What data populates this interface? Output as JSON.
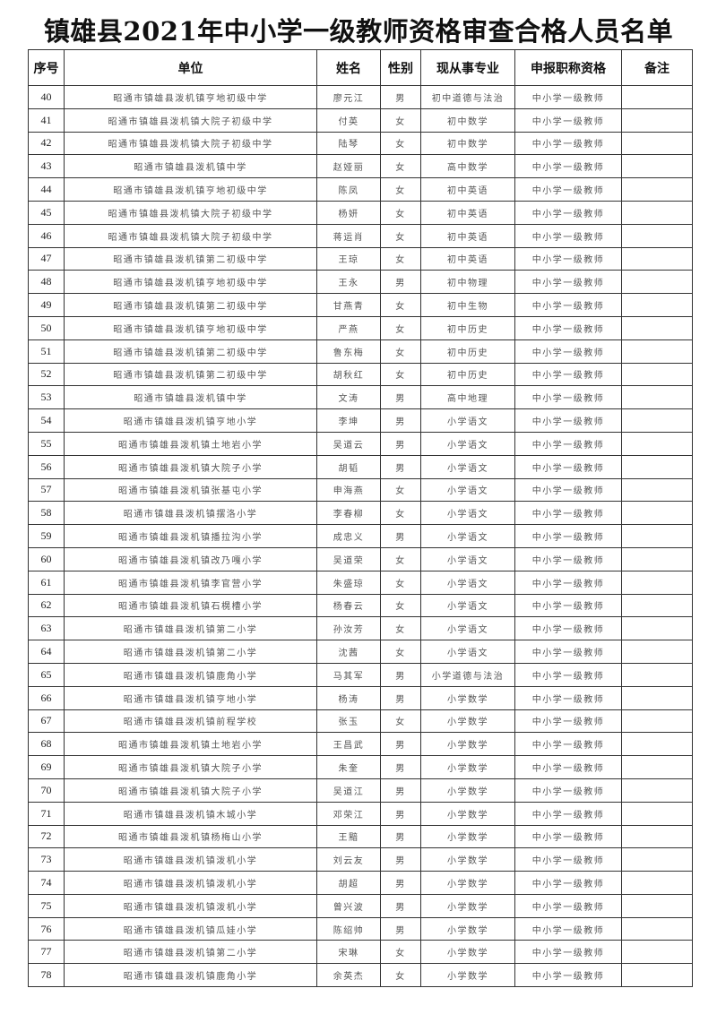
{
  "title": "镇雄县2021年中小学一级教师资格审查合格人员名单",
  "headers": [
    "序号",
    "单位",
    "姓名",
    "性别",
    "现从事专业",
    "申报职称资格",
    "备注"
  ],
  "rows": [
    {
      "no": "40",
      "unit": "昭通市镇雄县泼机镇亨地初级中学",
      "name": "廖元江",
      "gender": "男",
      "major": "初中道德与法治",
      "title": "中小学一级教师",
      "note": ""
    },
    {
      "no": "41",
      "unit": "昭通市镇雄县泼机镇大院子初级中学",
      "name": "付英",
      "gender": "女",
      "major": "初中数学",
      "title": "中小学一级教师",
      "note": ""
    },
    {
      "no": "42",
      "unit": "昭通市镇雄县泼机镇大院子初级中学",
      "name": "陆琴",
      "gender": "女",
      "major": "初中数学",
      "title": "中小学一级教师",
      "note": ""
    },
    {
      "no": "43",
      "unit": "昭通市镇雄县泼机镇中学",
      "name": "赵娅丽",
      "gender": "女",
      "major": "高中数学",
      "title": "中小学一级教师",
      "note": ""
    },
    {
      "no": "44",
      "unit": "昭通市镇雄县泼机镇亨地初级中学",
      "name": "陈凤",
      "gender": "女",
      "major": "初中英语",
      "title": "中小学一级教师",
      "note": ""
    },
    {
      "no": "45",
      "unit": "昭通市镇雄县泼机镇大院子初级中学",
      "name": "杨妍",
      "gender": "女",
      "major": "初中英语",
      "title": "中小学一级教师",
      "note": ""
    },
    {
      "no": "46",
      "unit": "昭通市镇雄县泼机镇大院子初级中学",
      "name": "蒋运肖",
      "gender": "女",
      "major": "初中英语",
      "title": "中小学一级教师",
      "note": ""
    },
    {
      "no": "47",
      "unit": "昭通市镇雄县泼机镇第二初级中学",
      "name": "王琼",
      "gender": "女",
      "major": "初中英语",
      "title": "中小学一级教师",
      "note": ""
    },
    {
      "no": "48",
      "unit": "昭通市镇雄县泼机镇亨地初级中学",
      "name": "王永",
      "gender": "男",
      "major": "初中物理",
      "title": "中小学一级教师",
      "note": ""
    },
    {
      "no": "49",
      "unit": "昭通市镇雄县泼机镇第二初级中学",
      "name": "甘燕青",
      "gender": "女",
      "major": "初中生物",
      "title": "中小学一级教师",
      "note": ""
    },
    {
      "no": "50",
      "unit": "昭通市镇雄县泼机镇亨地初级中学",
      "name": "严燕",
      "gender": "女",
      "major": "初中历史",
      "title": "中小学一级教师",
      "note": ""
    },
    {
      "no": "51",
      "unit": "昭通市镇雄县泼机镇第二初级中学",
      "name": "鲁东梅",
      "gender": "女",
      "major": "初中历史",
      "title": "中小学一级教师",
      "note": ""
    },
    {
      "no": "52",
      "unit": "昭通市镇雄县泼机镇第二初级中学",
      "name": "胡秋红",
      "gender": "女",
      "major": "初中历史",
      "title": "中小学一级教师",
      "note": ""
    },
    {
      "no": "53",
      "unit": "昭通市镇雄县泼机镇中学",
      "name": "文涛",
      "gender": "男",
      "major": "高中地理",
      "title": "中小学一级教师",
      "note": ""
    },
    {
      "no": "54",
      "unit": "昭通市镇雄县泼机镇亨地小学",
      "name": "李坤",
      "gender": "男",
      "major": "小学语文",
      "title": "中小学一级教师",
      "note": ""
    },
    {
      "no": "55",
      "unit": "昭通市镇雄县泼机镇土地岩小学",
      "name": "吴道云",
      "gender": "男",
      "major": "小学语文",
      "title": "中小学一级教师",
      "note": ""
    },
    {
      "no": "56",
      "unit": "昭通市镇雄县泼机镇大院子小学",
      "name": "胡韬",
      "gender": "男",
      "major": "小学语文",
      "title": "中小学一级教师",
      "note": ""
    },
    {
      "no": "57",
      "unit": "昭通市镇雄县泼机镇张基屯小学",
      "name": "申海燕",
      "gender": "女",
      "major": "小学语文",
      "title": "中小学一级教师",
      "note": ""
    },
    {
      "no": "58",
      "unit": "昭通市镇雄县泼机镇摆洛小学",
      "name": "李春柳",
      "gender": "女",
      "major": "小学语文",
      "title": "中小学一级教师",
      "note": ""
    },
    {
      "no": "59",
      "unit": "昭通市镇雄县泼机镇播拉沟小学",
      "name": "成忠义",
      "gender": "男",
      "major": "小学语文",
      "title": "中小学一级教师",
      "note": ""
    },
    {
      "no": "60",
      "unit": "昭通市镇雄县泼机镇改乃嘎小学",
      "name": "吴道荣",
      "gender": "女",
      "major": "小学语文",
      "title": "中小学一级教师",
      "note": ""
    },
    {
      "no": "61",
      "unit": "昭通市镇雄县泼机镇李官营小学",
      "name": "朱盛琼",
      "gender": "女",
      "major": "小学语文",
      "title": "中小学一级教师",
      "note": ""
    },
    {
      "no": "62",
      "unit": "昭通市镇雄县泼机镇石榥槽小学",
      "name": "杨春云",
      "gender": "女",
      "major": "小学语文",
      "title": "中小学一级教师",
      "note": ""
    },
    {
      "no": "63",
      "unit": "昭通市镇雄县泼机镇第二小学",
      "name": "孙汝芳",
      "gender": "女",
      "major": "小学语文",
      "title": "中小学一级教师",
      "note": ""
    },
    {
      "no": "64",
      "unit": "昭通市镇雄县泼机镇第二小学",
      "name": "沈茜",
      "gender": "女",
      "major": "小学语文",
      "title": "中小学一级教师",
      "note": ""
    },
    {
      "no": "65",
      "unit": "昭通市镇雄县泼机镇鹿角小学",
      "name": "马其军",
      "gender": "男",
      "major": "小学道德与法治",
      "title": "中小学一级教师",
      "note": ""
    },
    {
      "no": "66",
      "unit": "昭通市镇雄县泼机镇亨地小学",
      "name": "杨涛",
      "gender": "男",
      "major": "小学数学",
      "title": "中小学一级教师",
      "note": ""
    },
    {
      "no": "67",
      "unit": "昭通市镇雄县泼机镇前程学校",
      "name": "张玉",
      "gender": "女",
      "major": "小学数学",
      "title": "中小学一级教师",
      "note": ""
    },
    {
      "no": "68",
      "unit": "昭通市镇雄县泼机镇土地岩小学",
      "name": "王昌武",
      "gender": "男",
      "major": "小学数学",
      "title": "中小学一级教师",
      "note": ""
    },
    {
      "no": "69",
      "unit": "昭通市镇雄县泼机镇大院子小学",
      "name": "朱奎",
      "gender": "男",
      "major": "小学数学",
      "title": "中小学一级教师",
      "note": ""
    },
    {
      "no": "70",
      "unit": "昭通市镇雄县泼机镇大院子小学",
      "name": "吴道江",
      "gender": "男",
      "major": "小学数学",
      "title": "中小学一级教师",
      "note": ""
    },
    {
      "no": "71",
      "unit": "昭通市镇雄县泼机镇木城小学",
      "name": "邓荣江",
      "gender": "男",
      "major": "小学数学",
      "title": "中小学一级教师",
      "note": ""
    },
    {
      "no": "72",
      "unit": "昭通市镇雄县泼机镇杨梅山小学",
      "name": "王黯",
      "gender": "男",
      "major": "小学数学",
      "title": "中小学一级教师",
      "note": ""
    },
    {
      "no": "73",
      "unit": "昭通市镇雄县泼机镇泼机小学",
      "name": "刘云友",
      "gender": "男",
      "major": "小学数学",
      "title": "中小学一级教师",
      "note": ""
    },
    {
      "no": "74",
      "unit": "昭通市镇雄县泼机镇泼机小学",
      "name": "胡超",
      "gender": "男",
      "major": "小学数学",
      "title": "中小学一级教师",
      "note": ""
    },
    {
      "no": "75",
      "unit": "昭通市镇雄县泼机镇泼机小学",
      "name": "曾兴波",
      "gender": "男",
      "major": "小学数学",
      "title": "中小学一级教师",
      "note": ""
    },
    {
      "no": "76",
      "unit": "昭通市镇雄县泼机镇瓜娃小学",
      "name": "陈绍帅",
      "gender": "男",
      "major": "小学数学",
      "title": "中小学一级教师",
      "note": ""
    },
    {
      "no": "77",
      "unit": "昭通市镇雄县泼机镇第二小学",
      "name": "宋琳",
      "gender": "女",
      "major": "小学数学",
      "title": "中小学一级教师",
      "note": ""
    },
    {
      "no": "78",
      "unit": "昭通市镇雄县泼机镇鹿角小学",
      "name": "余英杰",
      "gender": "女",
      "major": "小学数学",
      "title": "中小学一级教师",
      "note": ""
    }
  ]
}
